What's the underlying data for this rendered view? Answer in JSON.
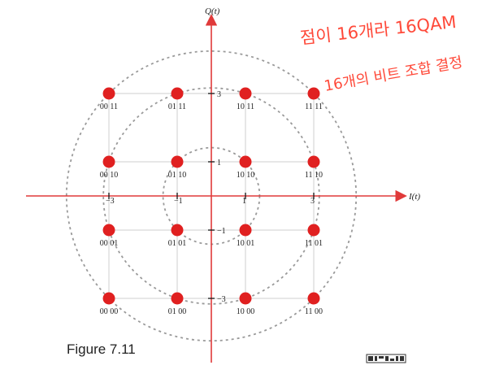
{
  "figure": {
    "caption": "Figure 7.11",
    "axis_i_label": "I(t)",
    "axis_q_label": "Q(t)",
    "x_ticks": [
      "−3",
      "−1",
      "1",
      "3"
    ],
    "y_ticks": [
      "3",
      "1",
      "−1",
      "−3"
    ]
  },
  "constellation": [
    {
      "i": -3,
      "q": 3,
      "bits": "00 11"
    },
    {
      "i": -1,
      "q": 3,
      "bits": "01 11"
    },
    {
      "i": 1,
      "q": 3,
      "bits": "10 11"
    },
    {
      "i": 3,
      "q": 3,
      "bits": "11 11"
    },
    {
      "i": -3,
      "q": 1,
      "bits": "00 10"
    },
    {
      "i": -1,
      "q": 1,
      "bits": "01 10"
    },
    {
      "i": 1,
      "q": 1,
      "bits": "10 10"
    },
    {
      "i": 3,
      "q": 1,
      "bits": "11 10"
    },
    {
      "i": -3,
      "q": -1,
      "bits": "00 01"
    },
    {
      "i": -1,
      "q": -1,
      "bits": "01 01"
    },
    {
      "i": 1,
      "q": -1,
      "bits": "10 01"
    },
    {
      "i": 3,
      "q": -1,
      "bits": "11 01"
    },
    {
      "i": -3,
      "q": -3,
      "bits": "00 00"
    },
    {
      "i": -1,
      "q": -3,
      "bits": "01 00"
    },
    {
      "i": 1,
      "q": -3,
      "bits": "10 00"
    },
    {
      "i": 3,
      "q": -3,
      "bits": "11 00"
    }
  ],
  "annotations": {
    "line1": "점이 16개라 16QAM",
    "line2": "16개의 비트 조합 결정"
  },
  "colors": {
    "point": "#e02020",
    "axis": "#e03a3a",
    "ring": "#9a9a9a",
    "grid": "#cfcfcf",
    "annotation": "#ff4a3a"
  },
  "icons": {
    "corner_mark": "scan-code-icon"
  }
}
